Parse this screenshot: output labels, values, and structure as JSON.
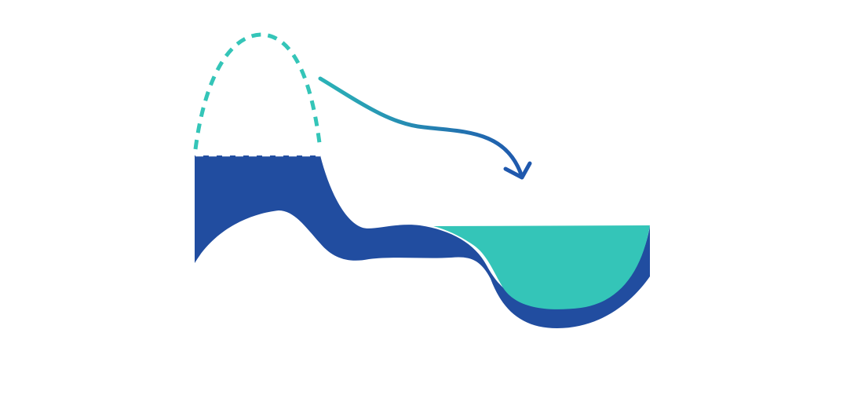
{
  "colors": {
    "background": "#ffffff",
    "navy": "#214da0",
    "teal": "#34c5b8",
    "arrow_start": "#2bb3b7",
    "arrow_end": "#1f58ad"
  },
  "icons": {
    "arrow": "curved-arrow-icon"
  },
  "elements": [
    "dashed-mound-outline",
    "navy-landmass-band",
    "teal-water-basin",
    "transfer-arrow"
  ]
}
